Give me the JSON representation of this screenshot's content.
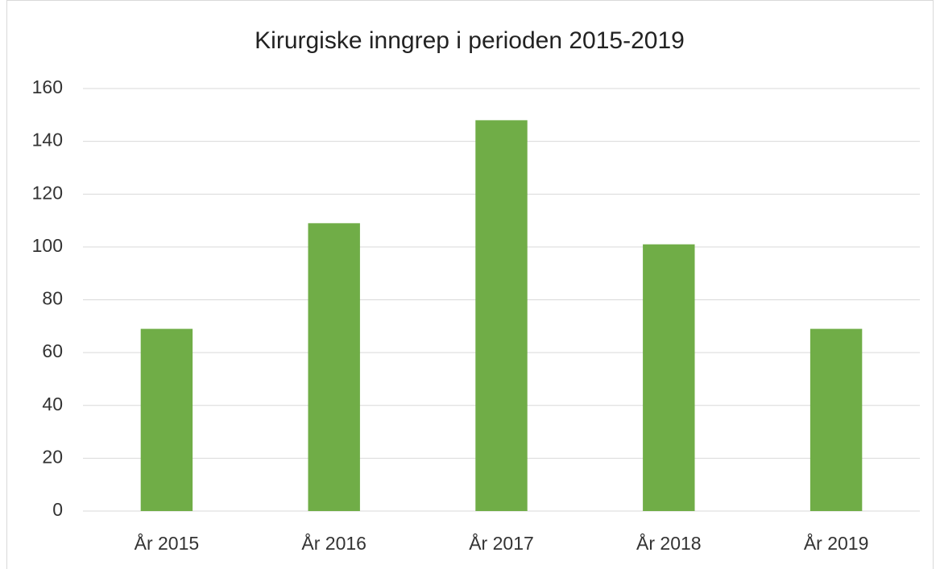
{
  "chart_data": {
    "type": "bar",
    "title": "Kirurgiske inngrep i perioden 2015-2019",
    "categories": [
      "År 2015",
      "År 2016",
      "År 2017",
      "År 2018",
      "År 2019"
    ],
    "values": [
      69,
      109,
      148,
      101,
      69
    ],
    "color": "#70ad47",
    "ylim": [
      0,
      160
    ],
    "yticks": [
      0,
      20,
      40,
      60,
      80,
      100,
      120,
      140,
      160
    ],
    "grid": true
  }
}
